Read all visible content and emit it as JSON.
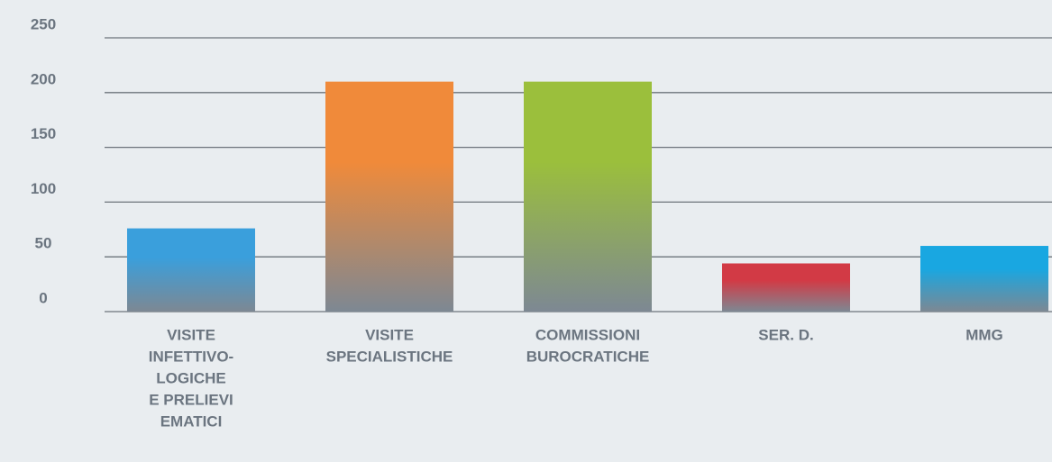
{
  "chart_data": {
    "type": "bar",
    "categories": [
      [
        "VISITE",
        "INFETTIVO-",
        "LOGICHE",
        "E PRELIEVI",
        "EMATICI"
      ],
      [
        "VISITE",
        "SPECIALISTICHE"
      ],
      [
        "COMMISSIONI",
        "BUROCRATICHE"
      ],
      [
        "SER. D."
      ],
      [
        "MMG"
      ]
    ],
    "values": [
      76,
      210,
      210,
      44,
      60
    ],
    "colors": [
      "#3a9fdc",
      "#f08a3a",
      "#9bbf3c",
      "#d23a45",
      "#19a7e1"
    ],
    "ylim": [
      0,
      250
    ],
    "yticks": [
      0,
      50,
      100,
      150,
      200,
      250
    ],
    "grid": true
  }
}
